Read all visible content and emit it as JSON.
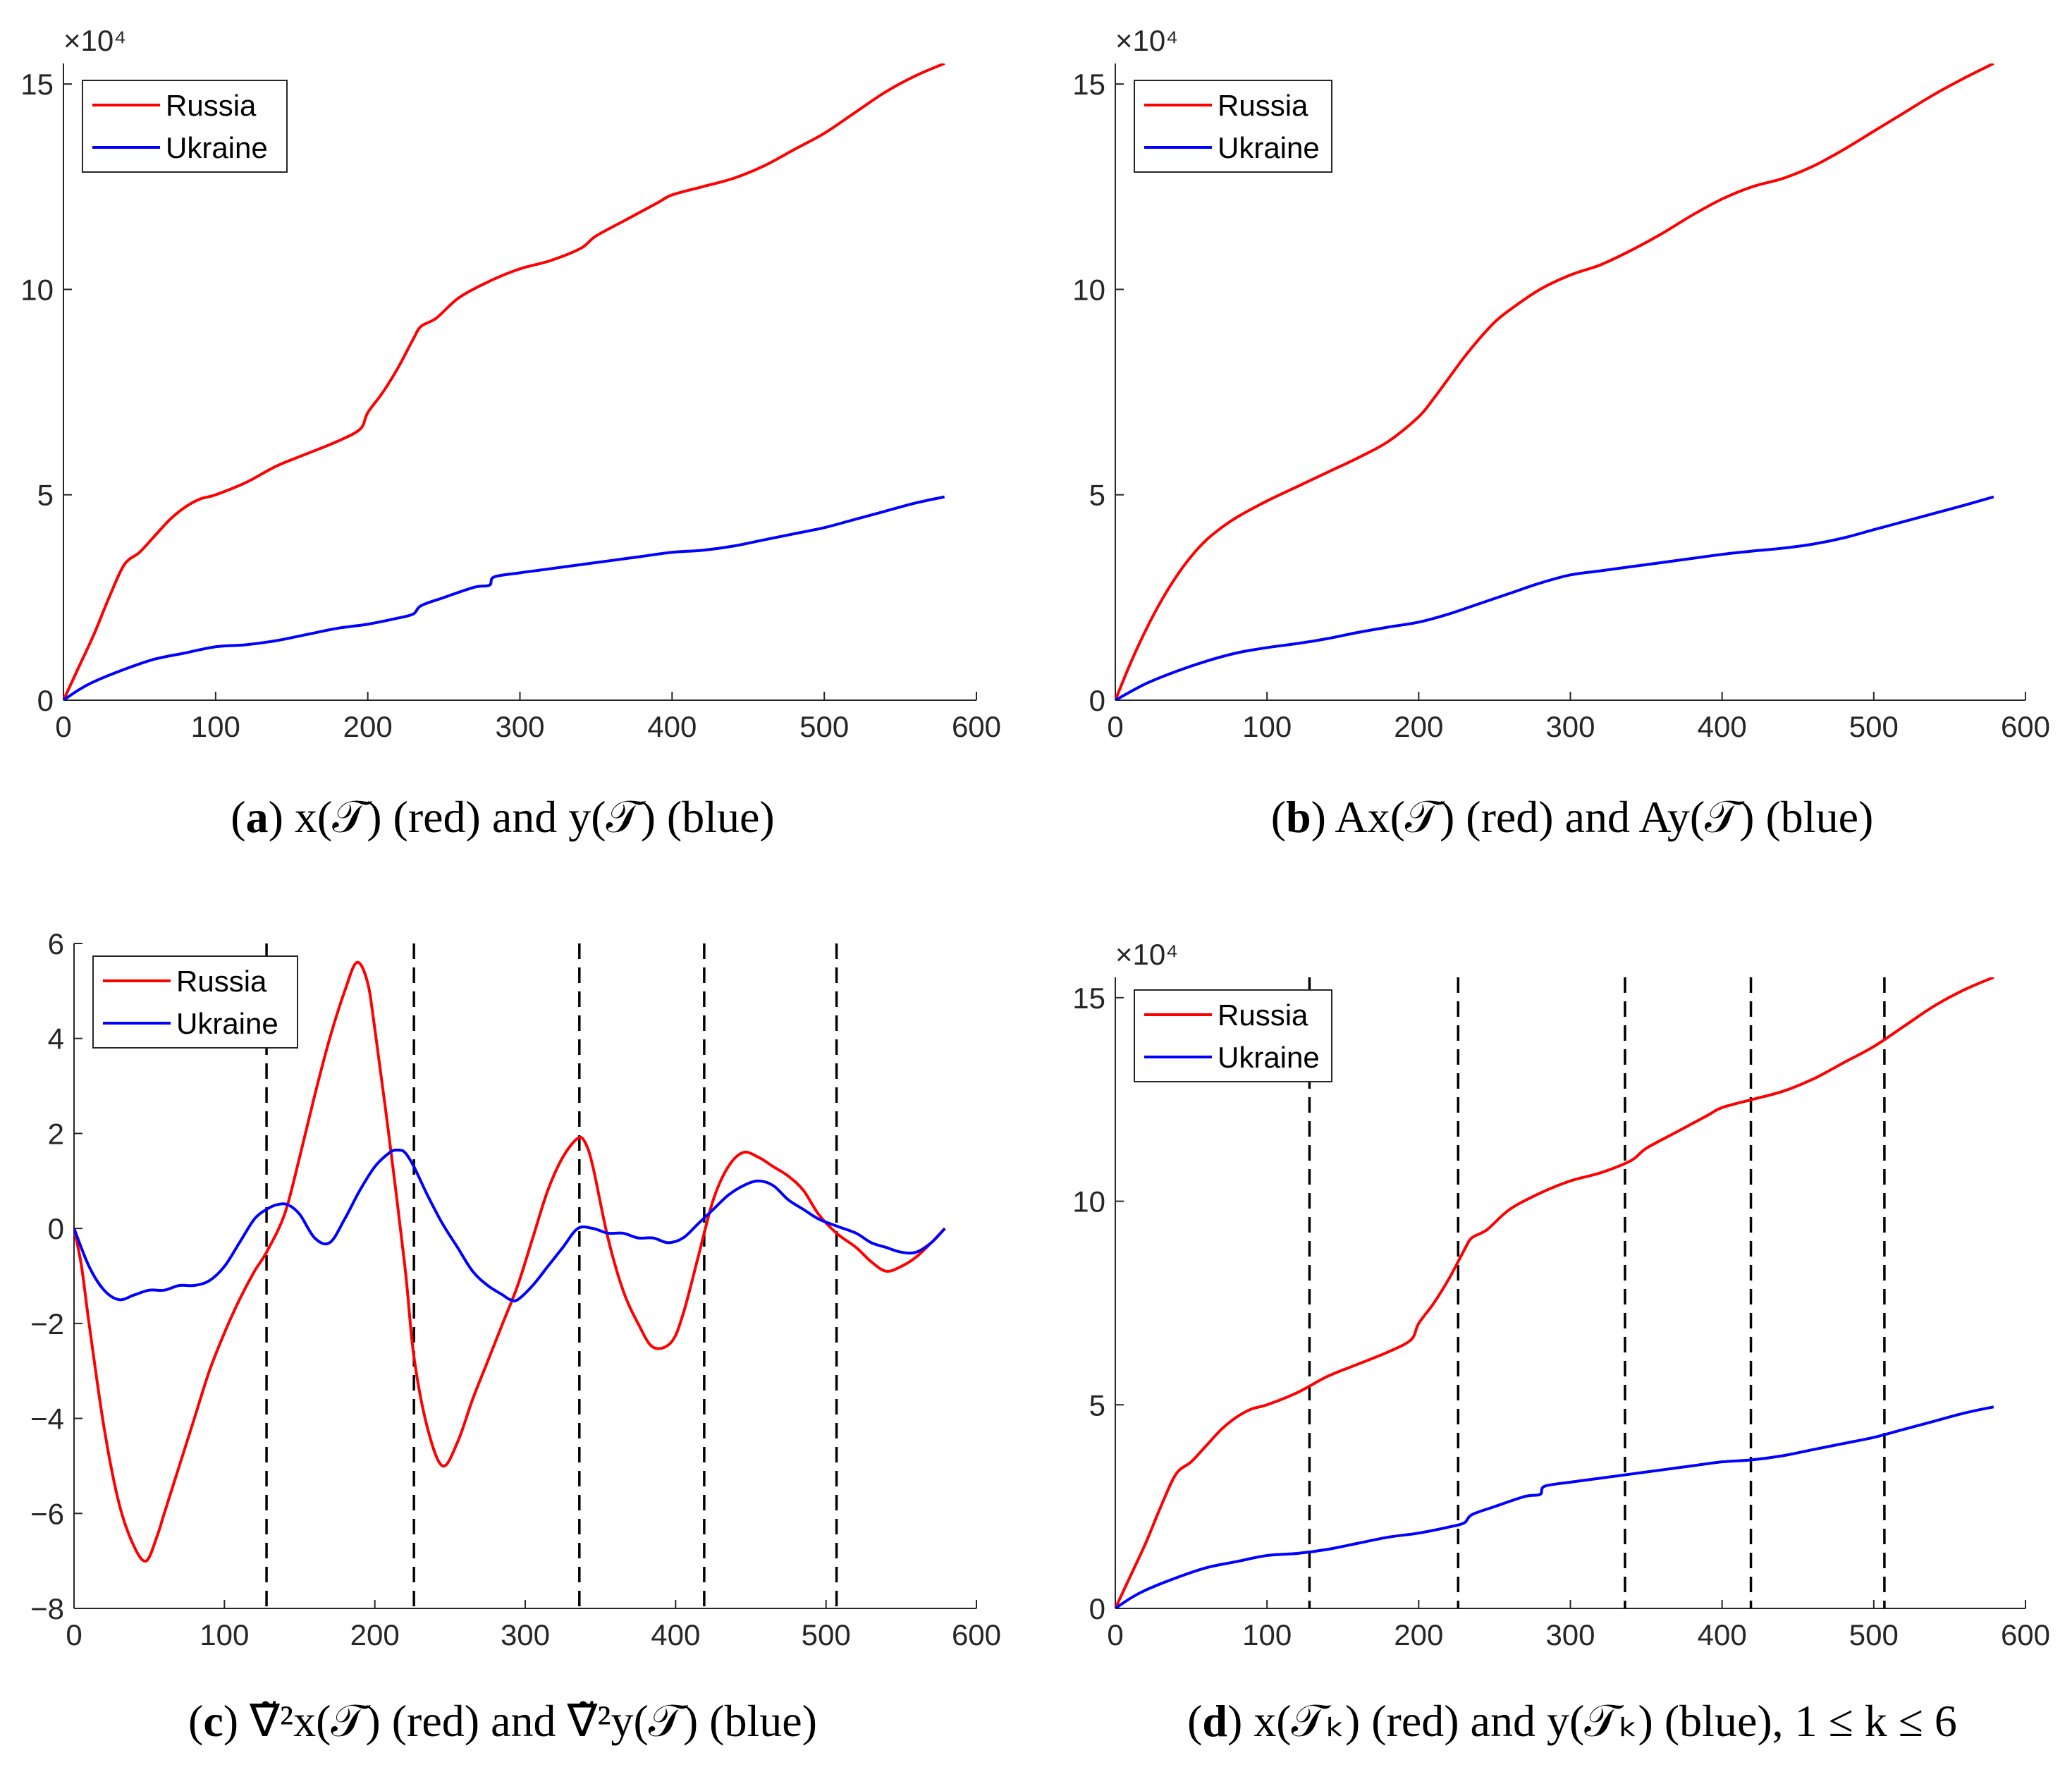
{
  "colors": {
    "russia": "#ff0000",
    "ukraine": "#0000ff",
    "axis": "#262626",
    "vline": "#000000"
  },
  "chart_data": [
    {
      "id": "a",
      "type": "line",
      "caption": {
        "label": "a",
        "text": "x(𝒯) (red) and y(𝒯) (blue)"
      },
      "xlim": [
        0,
        600
      ],
      "ylim": [
        0,
        155000
      ],
      "xticks": [
        0,
        100,
        200,
        300,
        400,
        500,
        600
      ],
      "xtick_labels": [
        "0",
        "100",
        "200",
        "300",
        "400",
        "500",
        "600"
      ],
      "yticks": [
        0,
        50000,
        100000,
        150000
      ],
      "ytick_labels": [
        "0",
        "5",
        "10",
        "15"
      ],
      "exponent_label": "×10⁴",
      "legend": [
        "Russia",
        "Ukraine"
      ],
      "legend_position": "top-left",
      "vlines": [],
      "series": [
        {
          "name": "Russia",
          "color": "#ff0000",
          "x": [
            0,
            10,
            20,
            30,
            40,
            50,
            60,
            70,
            80,
            90,
            100,
            120,
            140,
            160,
            180,
            195,
            200,
            210,
            220,
            230,
            235,
            245,
            260,
            280,
            300,
            320,
            340,
            350,
            370,
            390,
            400,
            420,
            440,
            460,
            480,
            500,
            520,
            540,
            560,
            579
          ],
          "y": [
            0,
            8000,
            16000,
            25000,
            33000,
            36000,
            40000,
            44000,
            47000,
            49000,
            50000,
            53000,
            57000,
            60000,
            63000,
            66000,
            70000,
            75000,
            81000,
            88000,
            91000,
            93000,
            98000,
            102000,
            105000,
            107000,
            110000,
            113000,
            117000,
            121000,
            123000,
            125000,
            127000,
            130000,
            134000,
            138000,
            143000,
            148000,
            152000,
            155000
          ]
        },
        {
          "name": "Ukraine",
          "color": "#0000ff",
          "x": [
            0,
            10,
            20,
            40,
            60,
            80,
            100,
            120,
            140,
            160,
            180,
            200,
            220,
            230,
            235,
            250,
            270,
            280,
            283,
            300,
            320,
            340,
            360,
            380,
            400,
            420,
            440,
            460,
            480,
            500,
            520,
            540,
            560,
            579
          ],
          "y": [
            0,
            2500,
            4500,
            7500,
            10000,
            11500,
            13000,
            13500,
            14500,
            16000,
            17500,
            18500,
            20000,
            21000,
            23000,
            25000,
            27500,
            28000,
            30000,
            31000,
            32000,
            33000,
            34000,
            35000,
            36000,
            36500,
            37500,
            39000,
            40500,
            42000,
            44000,
            46000,
            48000,
            49500
          ]
        }
      ]
    },
    {
      "id": "b",
      "type": "line",
      "caption": {
        "label": "b",
        "text": "Ax(𝒯) (red) and Ay(𝒯) (blue)"
      },
      "xlim": [
        0,
        600
      ],
      "ylim": [
        0,
        155000
      ],
      "xticks": [
        0,
        100,
        200,
        300,
        400,
        500,
        600
      ],
      "xtick_labels": [
        "0",
        "100",
        "200",
        "300",
        "400",
        "500",
        "600"
      ],
      "yticks": [
        0,
        50000,
        100000,
        150000
      ],
      "ytick_labels": [
        "0",
        "5",
        "10",
        "15"
      ],
      "exponent_label": "×10⁴",
      "legend": [
        "Russia",
        "Ukraine"
      ],
      "legend_position": "top-left",
      "vlines": [],
      "series": [
        {
          "name": "Russia",
          "color": "#ff0000",
          "x": [
            0,
            10,
            20,
            30,
            40,
            50,
            60,
            70,
            80,
            100,
            120,
            140,
            160,
            180,
            200,
            210,
            220,
            230,
            240,
            250,
            260,
            280,
            300,
            320,
            340,
            360,
            380,
            400,
            420,
            440,
            460,
            480,
            500,
            520,
            540,
            560,
            579
          ],
          "y": [
            0,
            9000,
            17000,
            24000,
            30000,
            35000,
            39000,
            42000,
            44500,
            48500,
            52000,
            55500,
            59000,
            63000,
            69000,
            73500,
            78500,
            83500,
            88000,
            92000,
            95000,
            100000,
            103500,
            106000,
            109500,
            113500,
            118000,
            122000,
            125000,
            127000,
            130000,
            134000,
            138500,
            143000,
            147500,
            151500,
            155000
          ]
        },
        {
          "name": "Ukraine",
          "color": "#0000ff",
          "x": [
            0,
            20,
            40,
            60,
            80,
            100,
            120,
            140,
            160,
            180,
            200,
            220,
            240,
            260,
            280,
            300,
            320,
            340,
            360,
            380,
            400,
            420,
            440,
            460,
            480,
            500,
            520,
            540,
            560,
            579
          ],
          "y": [
            0,
            4000,
            7000,
            9500,
            11500,
            12800,
            13800,
            15000,
            16500,
            17800,
            19000,
            21000,
            23500,
            26000,
            28500,
            30500,
            31500,
            32500,
            33500,
            34500,
            35500,
            36300,
            37000,
            38000,
            39500,
            41500,
            43500,
            45500,
            47500,
            49500
          ]
        }
      ]
    },
    {
      "id": "c",
      "type": "line",
      "caption": {
        "label": "c",
        "text": "∇̃²x(𝒯) (red) and ∇̃²y(𝒯) (blue)"
      },
      "xlim": [
        0,
        600
      ],
      "ylim": [
        -8,
        6
      ],
      "xticks": [
        0,
        100,
        200,
        300,
        400,
        500,
        600
      ],
      "xtick_labels": [
        "0",
        "100",
        "200",
        "300",
        "400",
        "500",
        "600"
      ],
      "yticks": [
        -8,
        -6,
        -4,
        -2,
        0,
        2,
        4,
        6
      ],
      "ytick_labels": [
        "−8",
        "−6",
        "−4",
        "−2",
        "0",
        "2",
        "4",
        "6"
      ],
      "exponent_label": "",
      "legend": [
        "Russia",
        "Ukraine"
      ],
      "legend_position": "top-left",
      "vlines": [
        128,
        226,
        336,
        419,
        507
      ],
      "series": [
        {
          "name": "Russia",
          "color": "#ff0000",
          "x": [
            0,
            5,
            10,
            20,
            30,
            40,
            48,
            55,
            60,
            70,
            80,
            90,
            100,
            110,
            120,
            128,
            140,
            150,
            160,
            170,
            180,
            188,
            195,
            200,
            210,
            220,
            226,
            235,
            245,
            255,
            265,
            275,
            285,
            295,
            305,
            315,
            325,
            335,
            340,
            345,
            355,
            365,
            375,
            385,
            397,
            405,
            415,
            425,
            435,
            445,
            455,
            465,
            475,
            485,
            495,
            507,
            520,
            530,
            540,
            550,
            560,
            570,
            579
          ],
          "y": [
            0,
            -0.8,
            -2.0,
            -4.2,
            -5.8,
            -6.7,
            -7.0,
            -6.5,
            -6.0,
            -5.0,
            -4.0,
            -3.0,
            -2.2,
            -1.5,
            -0.9,
            -0.5,
            0.3,
            1.5,
            2.8,
            4.0,
            5.0,
            5.6,
            5.2,
            4.2,
            1.8,
            -0.8,
            -2.7,
            -4.2,
            -5.0,
            -4.5,
            -3.6,
            -2.8,
            -2.0,
            -1.2,
            -0.2,
            0.8,
            1.5,
            1.9,
            1.8,
            1.3,
            -0.2,
            -1.3,
            -2.0,
            -2.5,
            -2.4,
            -1.8,
            -0.6,
            0.6,
            1.3,
            1.6,
            1.5,
            1.3,
            1.1,
            0.8,
            0.3,
            -0.1,
            -0.4,
            -0.7,
            -0.9,
            -0.8,
            -0.6,
            -0.3,
            0
          ]
        },
        {
          "name": "Ukraine",
          "color": "#0000ff",
          "x": [
            0,
            10,
            20,
            30,
            40,
            50,
            60,
            70,
            80,
            90,
            100,
            110,
            120,
            128,
            135,
            142,
            150,
            160,
            170,
            180,
            190,
            200,
            210,
            215,
            220,
            226,
            235,
            245,
            255,
            265,
            275,
            285,
            290,
            295,
            305,
            315,
            325,
            335,
            345,
            355,
            365,
            375,
            385,
            395,
            405,
            415,
            425,
            435,
            445,
            455,
            465,
            475,
            485,
            495,
            507,
            520,
            530,
            540,
            550,
            560,
            570,
            579
          ],
          "y": [
            0,
            -0.8,
            -1.3,
            -1.5,
            -1.4,
            -1.3,
            -1.3,
            -1.2,
            -1.2,
            -1.1,
            -0.8,
            -0.3,
            0.2,
            0.4,
            0.5,
            0.5,
            0.3,
            -0.2,
            -0.3,
            0.2,
            0.8,
            1.3,
            1.6,
            1.65,
            1.6,
            1.3,
            0.7,
            0.1,
            -0.4,
            -0.9,
            -1.2,
            -1.4,
            -1.5,
            -1.5,
            -1.2,
            -0.8,
            -0.4,
            0.0,
            0.0,
            -0.1,
            -0.1,
            -0.2,
            -0.2,
            -0.3,
            -0.2,
            0.1,
            0.4,
            0.7,
            0.9,
            1.0,
            0.9,
            0.6,
            0.4,
            0.2,
            0.05,
            -0.1,
            -0.3,
            -0.4,
            -0.5,
            -0.5,
            -0.3,
            0
          ]
        }
      ]
    },
    {
      "id": "d",
      "type": "line",
      "caption": {
        "label": "d",
        "text": "x(𝒯ₖ) (red) and y(𝒯ₖ) (blue), 1 ≤ k ≤ 6"
      },
      "xlim": [
        0,
        600
      ],
      "ylim": [
        0,
        155000
      ],
      "xticks": [
        0,
        100,
        200,
        300,
        400,
        500,
        600
      ],
      "xtick_labels": [
        "0",
        "100",
        "200",
        "300",
        "400",
        "500",
        "600"
      ],
      "yticks": [
        0,
        50000,
        100000,
        150000
      ],
      "ytick_labels": [
        "0",
        "5",
        "10",
        "15"
      ],
      "exponent_label": "×10⁴",
      "legend": [
        "Russia",
        "Ukraine"
      ],
      "legend_position": "top-left",
      "vlines": [
        128,
        226,
        336,
        419,
        507
      ],
      "series": [
        {
          "name": "Russia",
          "color": "#ff0000",
          "x": [
            0,
            10,
            20,
            30,
            40,
            50,
            60,
            70,
            80,
            90,
            100,
            120,
            140,
            160,
            180,
            195,
            200,
            210,
            220,
            230,
            235,
            245,
            260,
            280,
            300,
            320,
            340,
            350,
            370,
            390,
            400,
            420,
            440,
            460,
            480,
            500,
            520,
            540,
            560,
            579
          ],
          "y": [
            0,
            8000,
            16000,
            25000,
            33000,
            36000,
            40000,
            44000,
            47000,
            49000,
            50000,
            53000,
            57000,
            60000,
            63000,
            66000,
            70000,
            75000,
            81000,
            88000,
            91000,
            93000,
            98000,
            102000,
            105000,
            107000,
            110000,
            113000,
            117000,
            121000,
            123000,
            125000,
            127000,
            130000,
            134000,
            138000,
            143000,
            148000,
            152000,
            155000
          ]
        },
        {
          "name": "Ukraine",
          "color": "#0000ff",
          "x": [
            0,
            10,
            20,
            40,
            60,
            80,
            100,
            120,
            140,
            160,
            180,
            200,
            220,
            230,
            235,
            250,
            270,
            280,
            283,
            300,
            320,
            340,
            360,
            380,
            400,
            420,
            440,
            460,
            480,
            500,
            520,
            540,
            560,
            579
          ],
          "y": [
            0,
            2500,
            4500,
            7500,
            10000,
            11500,
            13000,
            13500,
            14500,
            16000,
            17500,
            18500,
            20000,
            21000,
            23000,
            25000,
            27500,
            28000,
            30000,
            31000,
            32000,
            33000,
            34000,
            35000,
            36000,
            36500,
            37500,
            39000,
            40500,
            42000,
            44000,
            46000,
            48000,
            49500
          ]
        }
      ]
    }
  ]
}
